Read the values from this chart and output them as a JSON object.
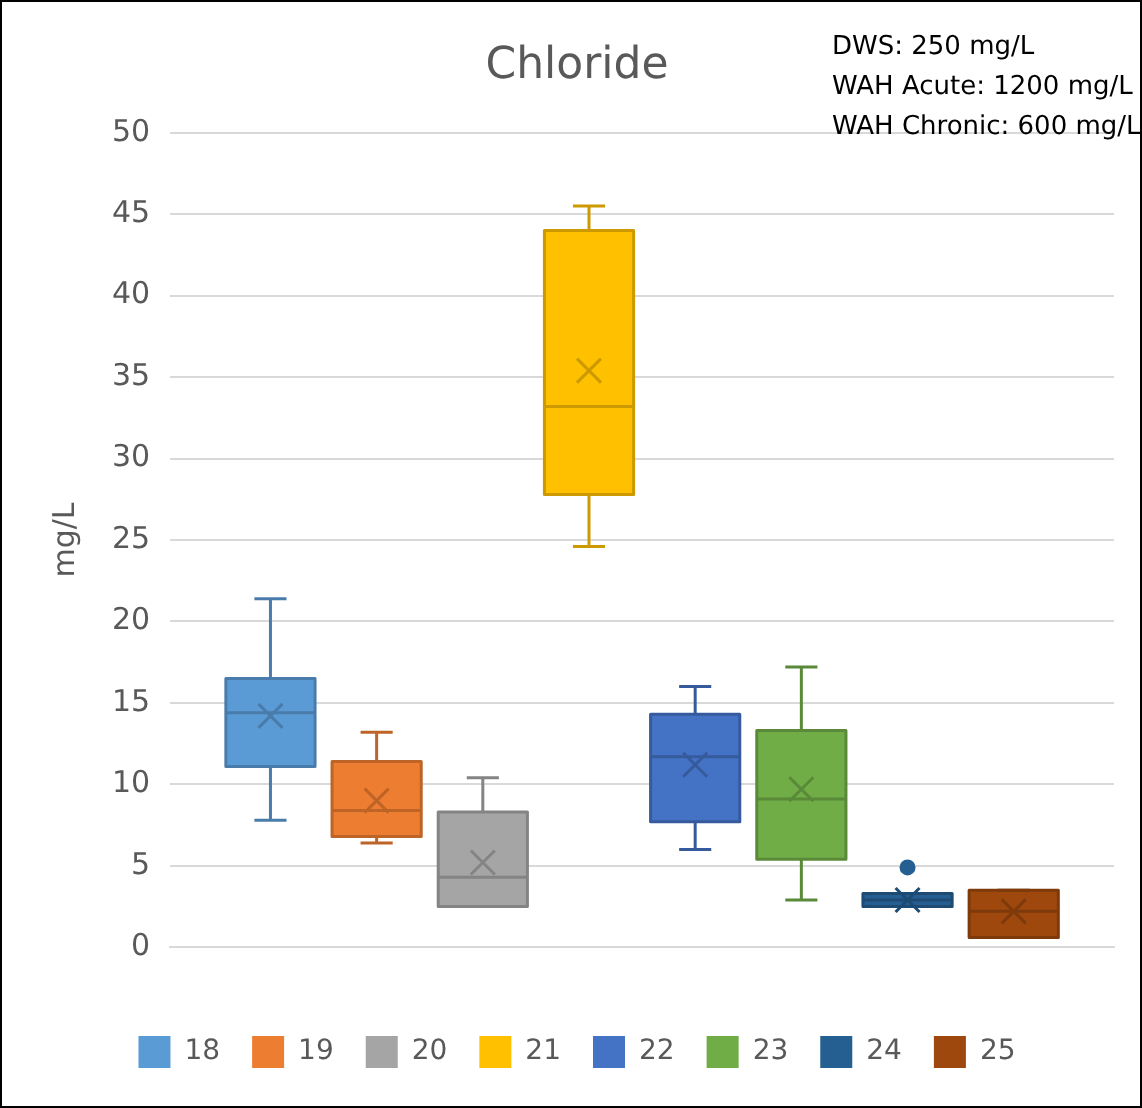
{
  "chart_data": {
    "type": "box",
    "title": "Chloride",
    "ylabel": "mg/L",
    "annotations": [
      "DWS: 250 mg/L",
      "WAH Acute: 1200 mg/L",
      "WAH Chronic: 600 mg/L"
    ],
    "categories": [
      null
    ],
    "ylim": [
      0,
      50
    ],
    "yticks": [
      0,
      5,
      10,
      15,
      20,
      25,
      30,
      35,
      40,
      45,
      50
    ],
    "grid": "y",
    "legend": "bottom",
    "marker": "cross",
    "series": [
      {
        "name": "18",
        "color": "#5b9bd5",
        "boxes": [
          {
            "low": 7.8,
            "q1": 11.1,
            "median": 14.4,
            "q3": 16.5,
            "high": 21.4,
            "mean": 14.2
          }
        ]
      },
      {
        "name": "19",
        "color": "#ed7d31",
        "boxes": [
          {
            "low": 6.4,
            "q1": 6.8,
            "median": 8.4,
            "q3": 11.4,
            "high": 13.2,
            "mean": 9.0
          }
        ]
      },
      {
        "name": "20",
        "color": "#a5a5a5",
        "boxes": [
          {
            "low": 2.5,
            "q1": 2.5,
            "median": 4.3,
            "q3": 8.3,
            "high": 10.4,
            "mean": 5.2
          }
        ]
      },
      {
        "name": "21",
        "color": "#ffc000",
        "boxes": [
          {
            "low": 24.6,
            "q1": 27.8,
            "median": 33.2,
            "q3": 44.0,
            "high": 45.5,
            "mean": 35.4
          }
        ]
      },
      {
        "name": "22",
        "color": "#4472c4",
        "boxes": [
          {
            "low": 6.0,
            "q1": 7.7,
            "median": 11.7,
            "q3": 14.3,
            "high": 16.0,
            "mean": 11.2
          }
        ]
      },
      {
        "name": "23",
        "color": "#70ad47",
        "boxes": [
          {
            "low": 2.9,
            "q1": 5.4,
            "median": 9.1,
            "q3": 13.3,
            "high": 17.2,
            "mean": 9.7
          }
        ]
      },
      {
        "name": "24",
        "color": "#255e91",
        "boxes": [
          {
            "low": 2.5,
            "q1": 2.5,
            "median": 2.9,
            "q3": 3.3,
            "high": 3.3,
            "mean": 2.9,
            "outliers": [
              4.9
            ]
          }
        ]
      },
      {
        "name": "25",
        "color": "#9e480e",
        "boxes": [
          {
            "low": 0.6,
            "q1": 0.6,
            "median": 2.2,
            "q3": 3.5,
            "high": 3.5,
            "mean": 2.2
          }
        ]
      }
    ]
  }
}
